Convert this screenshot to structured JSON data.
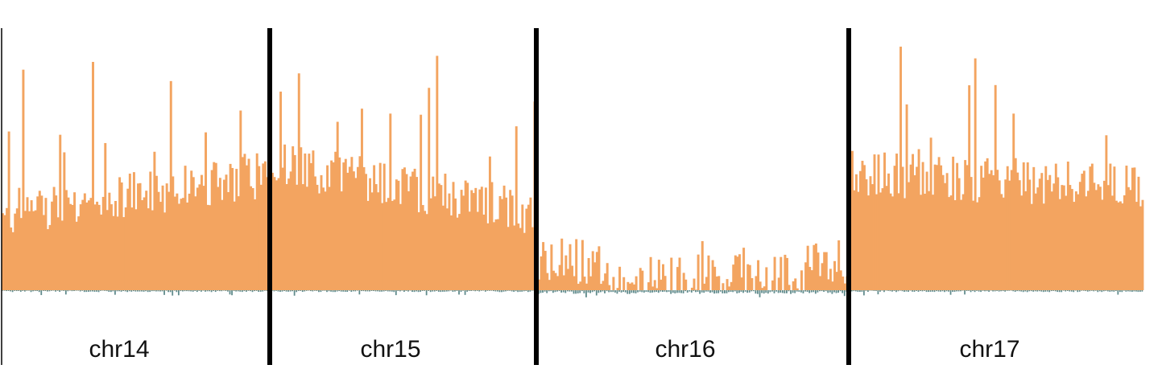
{
  "chart_data": {
    "type": "bar",
    "title": "",
    "xlabel": "",
    "ylabel": "",
    "grid": false,
    "legend": "none",
    "colors": {
      "gain": "#F3A460",
      "loss": "#5F8A8B",
      "boundary": "#000000"
    },
    "ylim": [
      -0.15,
      1.0
    ],
    "chromosomes": [
      {
        "name": "chr14",
        "bins": 130,
        "gain_level": 0.3,
        "gain_trend": 0.15,
        "gain_peak": 0.9,
        "loss_level": 0.02
      },
      {
        "name": "chr15",
        "bins": 130,
        "gain_level": 0.5,
        "gain_trend": -0.2,
        "gain_peak": 0.95,
        "loss_level": 0.02
      },
      {
        "name": "chr16",
        "bins": 150,
        "gain_level": 0.05,
        "gain_trend": 0.0,
        "gain_peak": 0.2,
        "loss_level": 0.04
      },
      {
        "name": "chr17",
        "bins": 145,
        "gain_level": 0.45,
        "gain_trend": -0.05,
        "gain_peak": 0.95,
        "loss_level": 0.02
      }
    ]
  }
}
